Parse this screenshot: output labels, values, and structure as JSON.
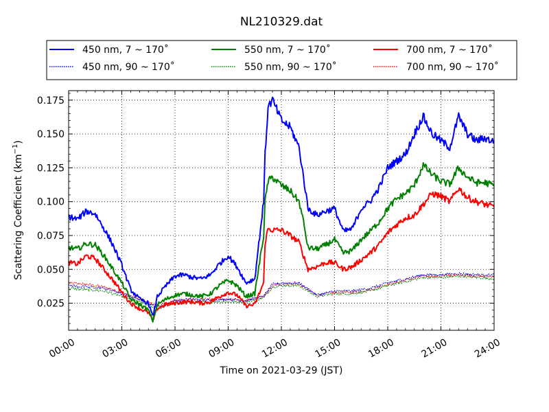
{
  "chart_data": {
    "type": "line",
    "title": "NL210329.dat",
    "xlabel": "Time on 2021-03-29 (JST)",
    "ylabel": "Scattering Coefficient (km",
    "ylabel_sup": "−1",
    "ylabel_end": ")",
    "xlim": [
      "00:00",
      "24:00"
    ],
    "ylim": [
      0.005,
      0.182
    ],
    "x_ticks": [
      "00:00",
      "03:00",
      "06:00",
      "09:00",
      "12:00",
      "15:00",
      "18:00",
      "21:00",
      "24:00"
    ],
    "y_ticks": [
      "0.025",
      "0.050",
      "0.075",
      "0.100",
      "0.125",
      "0.150",
      "0.175"
    ],
    "grid": true,
    "legend_position": "top",
    "legend_columns": 3,
    "series": [
      {
        "name": "450 nm, 7 ~ 170˚",
        "color": "#0000ff",
        "style": "solid",
        "x": [
          "00:00",
          "00:30",
          "01:00",
          "01:30",
          "02:00",
          "02:30",
          "03:00",
          "03:30",
          "04:00",
          "04:30",
          "04:45",
          "05:00",
          "05:30",
          "06:00",
          "06:30",
          "07:00",
          "07:30",
          "08:00",
          "08:30",
          "09:00",
          "09:30",
          "10:00",
          "10:30",
          "11:00",
          "11:05",
          "11:15",
          "11:30",
          "12:00",
          "12:30",
          "13:00",
          "13:15",
          "13:30",
          "14:00",
          "14:30",
          "15:00",
          "15:30",
          "16:00",
          "16:30",
          "17:00",
          "17:30",
          "18:00",
          "18:30",
          "19:00",
          "19:30",
          "20:00",
          "20:30",
          "21:00",
          "21:30",
          "22:00",
          "22:30",
          "23:00",
          "23:30",
          "24:00"
        ],
        "y": [
          0.089,
          0.087,
          0.093,
          0.091,
          0.08,
          0.068,
          0.053,
          0.035,
          0.028,
          0.025,
          0.015,
          0.03,
          0.038,
          0.045,
          0.046,
          0.044,
          0.043,
          0.046,
          0.054,
          0.06,
          0.052,
          0.04,
          0.043,
          0.1,
          0.135,
          0.17,
          0.175,
          0.16,
          0.155,
          0.14,
          0.118,
          0.095,
          0.09,
          0.093,
          0.095,
          0.078,
          0.08,
          0.095,
          0.1,
          0.11,
          0.125,
          0.13,
          0.135,
          0.15,
          0.163,
          0.15,
          0.145,
          0.14,
          0.163,
          0.15,
          0.145,
          0.147,
          0.144
        ]
      },
      {
        "name": "450 nm, 90 ~ 170˚",
        "color": "#0000ff",
        "style": "dotted",
        "x": [
          "00:00",
          "01:00",
          "02:00",
          "03:00",
          "04:00",
          "05:00",
          "06:00",
          "07:00",
          "08:00",
          "09:00",
          "10:00",
          "11:00",
          "11:30",
          "12:00",
          "13:00",
          "14:00",
          "15:00",
          "16:00",
          "17:00",
          "18:00",
          "19:00",
          "20:00",
          "21:00",
          "22:00",
          "23:00",
          "24:00"
        ],
        "y": [
          0.038,
          0.037,
          0.036,
          0.032,
          0.028,
          0.022,
          0.027,
          0.028,
          0.027,
          0.028,
          0.027,
          0.03,
          0.039,
          0.04,
          0.04,
          0.031,
          0.034,
          0.034,
          0.036,
          0.04,
          0.043,
          0.046,
          0.046,
          0.047,
          0.046,
          0.046
        ]
      },
      {
        "name": "550 nm, 7 ~ 170˚",
        "color": "#008000",
        "style": "solid",
        "x": [
          "00:00",
          "00:30",
          "01:00",
          "01:30",
          "02:00",
          "02:30",
          "03:00",
          "03:30",
          "04:00",
          "04:30",
          "04:45",
          "05:00",
          "05:30",
          "06:00",
          "06:30",
          "07:00",
          "07:30",
          "08:00",
          "08:30",
          "09:00",
          "09:30",
          "10:00",
          "10:30",
          "11:00",
          "11:05",
          "11:15",
          "11:30",
          "12:00",
          "12:30",
          "13:00",
          "13:15",
          "13:30",
          "14:00",
          "14:30",
          "15:00",
          "15:30",
          "16:00",
          "16:30",
          "17:00",
          "17:30",
          "18:00",
          "18:30",
          "19:00",
          "19:30",
          "20:00",
          "20:30",
          "21:00",
          "21:30",
          "22:00",
          "22:30",
          "23:00",
          "23:30",
          "24:00"
        ],
        "y": [
          0.066,
          0.065,
          0.069,
          0.068,
          0.06,
          0.05,
          0.04,
          0.028,
          0.024,
          0.02,
          0.012,
          0.024,
          0.028,
          0.031,
          0.032,
          0.031,
          0.03,
          0.032,
          0.038,
          0.042,
          0.038,
          0.03,
          0.032,
          0.075,
          0.1,
          0.115,
          0.118,
          0.112,
          0.108,
          0.1,
          0.085,
          0.066,
          0.065,
          0.068,
          0.072,
          0.062,
          0.064,
          0.072,
          0.078,
          0.085,
          0.095,
          0.102,
          0.106,
          0.112,
          0.127,
          0.12,
          0.115,
          0.113,
          0.125,
          0.118,
          0.114,
          0.114,
          0.112
        ]
      },
      {
        "name": "550 nm, 90 ~ 170˚",
        "color": "#008000",
        "style": "dotted",
        "x": [
          "00:00",
          "01:00",
          "02:00",
          "03:00",
          "04:00",
          "05:00",
          "06:00",
          "07:00",
          "08:00",
          "09:00",
          "10:00",
          "11:00",
          "11:30",
          "12:00",
          "13:00",
          "14:00",
          "15:00",
          "16:00",
          "17:00",
          "18:00",
          "19:00",
          "20:00",
          "21:00",
          "22:00",
          "23:00",
          "24:00"
        ],
        "y": [
          0.036,
          0.035,
          0.034,
          0.03,
          0.026,
          0.021,
          0.025,
          0.026,
          0.026,
          0.026,
          0.026,
          0.029,
          0.037,
          0.038,
          0.038,
          0.03,
          0.032,
          0.032,
          0.034,
          0.038,
          0.041,
          0.044,
          0.044,
          0.045,
          0.044,
          0.043
        ]
      },
      {
        "name": "700 nm, 7 ~ 170˚",
        "color": "#ff0000",
        "style": "solid",
        "x": [
          "00:00",
          "00:30",
          "01:00",
          "01:30",
          "02:00",
          "02:30",
          "03:00",
          "03:30",
          "04:00",
          "04:30",
          "04:45",
          "05:00",
          "05:30",
          "06:00",
          "06:30",
          "07:00",
          "07:30",
          "08:00",
          "08:30",
          "09:00",
          "09:30",
          "10:00",
          "10:30",
          "11:00",
          "11:05",
          "11:15",
          "11:30",
          "12:00",
          "12:30",
          "13:00",
          "13:15",
          "13:30",
          "14:00",
          "14:30",
          "15:00",
          "15:30",
          "16:00",
          "16:30",
          "17:00",
          "17:30",
          "18:00",
          "18:30",
          "19:00",
          "19:30",
          "20:00",
          "20:30",
          "21:00",
          "21:30",
          "22:00",
          "22:30",
          "23:00",
          "23:30",
          "24:00"
        ],
        "y": [
          0.055,
          0.054,
          0.06,
          0.058,
          0.05,
          0.042,
          0.033,
          0.025,
          0.021,
          0.018,
          0.012,
          0.021,
          0.024,
          0.025,
          0.026,
          0.026,
          0.025,
          0.026,
          0.03,
          0.033,
          0.031,
          0.023,
          0.024,
          0.04,
          0.07,
          0.08,
          0.079,
          0.079,
          0.075,
          0.07,
          0.06,
          0.05,
          0.052,
          0.055,
          0.055,
          0.05,
          0.052,
          0.057,
          0.062,
          0.068,
          0.077,
          0.083,
          0.088,
          0.09,
          0.098,
          0.106,
          0.104,
          0.1,
          0.11,
          0.103,
          0.1,
          0.098,
          0.096
        ]
      },
      {
        "name": "700 nm, 90 ~ 170˚",
        "color": "#ff0000",
        "style": "dotted",
        "x": [
          "00:00",
          "01:00",
          "02:00",
          "03:00",
          "04:00",
          "05:00",
          "06:00",
          "07:00",
          "08:00",
          "09:00",
          "10:00",
          "11:00",
          "11:30",
          "12:00",
          "13:00",
          "14:00",
          "15:00",
          "16:00",
          "17:00",
          "18:00",
          "19:00",
          "20:00",
          "21:00",
          "22:00",
          "23:00",
          "24:00"
        ],
        "y": [
          0.04,
          0.039,
          0.037,
          0.033,
          0.028,
          0.023,
          0.027,
          0.028,
          0.028,
          0.028,
          0.027,
          0.03,
          0.038,
          0.039,
          0.039,
          0.031,
          0.033,
          0.033,
          0.035,
          0.039,
          0.042,
          0.045,
          0.045,
          0.046,
          0.045,
          0.045
        ]
      }
    ]
  }
}
